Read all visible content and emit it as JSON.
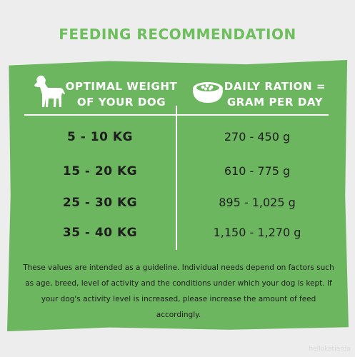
{
  "title": "FEEDING RECOMMENDATION",
  "table": {
    "col1_header_line1": "OPTIMAL WEIGHT",
    "col1_header_line2": "OF YOUR DOG",
    "col2_header_line1": "DAILY RATION =",
    "col2_header_line2": "GRAM PER DAY",
    "rows": [
      {
        "weight": "5 - 10 KG",
        "ration": "270 - 450 g"
      },
      {
        "weight": "15 - 20 KG",
        "ration": "610 - 775 g"
      },
      {
        "weight": "25 - 30 KG",
        "ration": "895 - 1,025 g"
      },
      {
        "weight": "35 - 40 KG",
        "ration": "1,150 - 1,270 g"
      }
    ]
  },
  "note": "These values are intended as a guideline. Individual needs depend on factors such as age, breed, level of activity and the conditions under which your dog is kept. If your dog's activity level is increased, please increase the amount of feed accordingly.",
  "watermark": "hellokatiarda",
  "icons": {
    "dog": "dog-icon",
    "bowl": "food-bowl-icon"
  },
  "colors": {
    "panel": "#6db660",
    "title": "#6dbe5c",
    "background": "#ededed"
  }
}
